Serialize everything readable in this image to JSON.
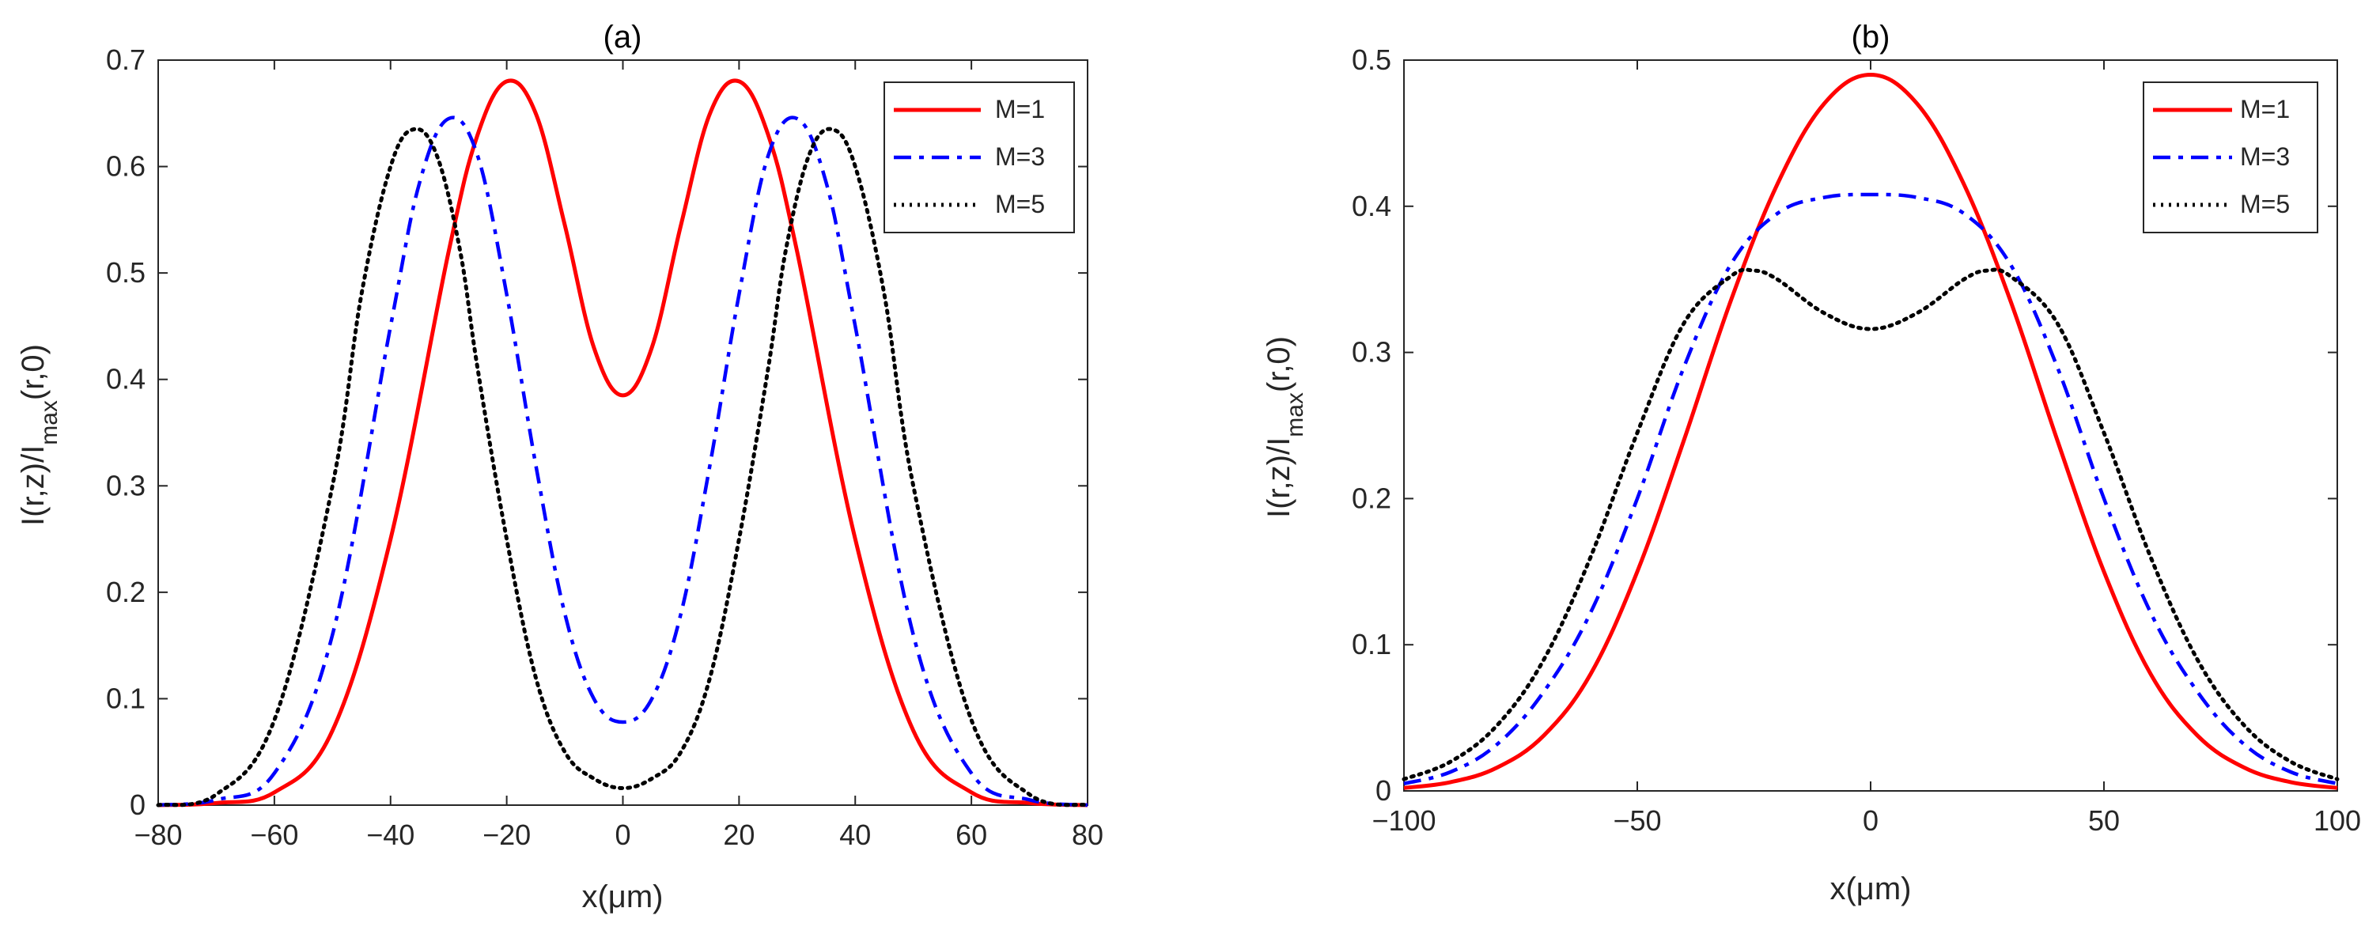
{
  "colors": {
    "m1": "#ff0000",
    "m3": "#0000ff",
    "m5": "#000000",
    "axis": "#262626"
  },
  "chart_data": [
    {
      "type": "line",
      "title": "(a)",
      "xlabel": "x(μm)",
      "ylabel": {
        "prefix": "I(r,z)/I",
        "sub": "max",
        "suffix": "(r,0)"
      },
      "xlim": [
        -80,
        80
      ],
      "ylim": [
        0,
        0.7
      ],
      "xticks": [
        -80,
        -60,
        -40,
        -20,
        0,
        20,
        40,
        60,
        80
      ],
      "xtick_labels": [
        "−80",
        "−60",
        "−40",
        "−20",
        "0",
        "20",
        "40",
        "60",
        "80"
      ],
      "yticks": [
        0,
        0.1,
        0.2,
        0.3,
        0.4,
        0.5,
        0.6,
        0.7
      ],
      "ytick_labels": [
        "0",
        "0.1",
        "0.2",
        "0.3",
        "0.4",
        "0.5",
        "0.6",
        "0.7"
      ],
      "legend": {
        "location": "top-right",
        "entries": [
          "M=1",
          "M=3",
          "M=5"
        ]
      },
      "series": [
        {
          "name": "M=1",
          "style": "solid",
          "color_key": "m1",
          "x": [
            -80,
            -70,
            -60,
            -50,
            -40,
            -30,
            -25,
            -20,
            -15,
            -10,
            -5,
            0,
            5,
            10,
            15,
            20,
            25,
            30,
            40,
            50,
            60,
            70,
            80
          ],
          "y": [
            0.0,
            0.002,
            0.012,
            0.07,
            0.25,
            0.52,
            0.63,
            0.68,
            0.65,
            0.545,
            0.43,
            0.385,
            0.43,
            0.545,
            0.65,
            0.68,
            0.63,
            0.52,
            0.25,
            0.07,
            0.012,
            0.002,
            0.0
          ]
        },
        {
          "name": "M=3",
          "style": "dashdot",
          "color_key": "m3",
          "x": [
            -80,
            -70,
            -60,
            -50,
            -40,
            -35,
            -30,
            -25,
            -20,
            -15,
            -10,
            -5,
            0,
            5,
            10,
            15,
            20,
            25,
            30,
            35,
            40,
            50,
            60,
            70,
            80
          ],
          "y": [
            0.0,
            0.005,
            0.03,
            0.16,
            0.45,
            0.585,
            0.645,
            0.61,
            0.48,
            0.32,
            0.18,
            0.1,
            0.078,
            0.1,
            0.18,
            0.32,
            0.48,
            0.61,
            0.645,
            0.585,
            0.45,
            0.16,
            0.03,
            0.005,
            0.0
          ]
        },
        {
          "name": "M=5",
          "style": "dotted",
          "color_key": "m5",
          "x": [
            -80,
            -70,
            -60,
            -50,
            -45,
            -40,
            -36,
            -32,
            -28,
            -25,
            -20,
            -15,
            -10,
            -5,
            0,
            5,
            10,
            15,
            20,
            25,
            28,
            32,
            36,
            40,
            45,
            50,
            60,
            70,
            80
          ],
          "y": [
            0.0,
            0.01,
            0.08,
            0.3,
            0.48,
            0.6,
            0.635,
            0.61,
            0.52,
            0.41,
            0.25,
            0.12,
            0.05,
            0.025,
            0.016,
            0.025,
            0.05,
            0.12,
            0.25,
            0.41,
            0.52,
            0.61,
            0.635,
            0.6,
            0.48,
            0.3,
            0.08,
            0.01,
            0.0
          ]
        }
      ]
    },
    {
      "type": "line",
      "title": "(b)",
      "xlabel": "x(μm)",
      "ylabel": {
        "prefix": "I(r,z)/I",
        "sub": "max",
        "suffix": "(r,0)"
      },
      "xlim": [
        -100,
        100
      ],
      "ylim": [
        0,
        0.5
      ],
      "xticks": [
        -100,
        -50,
        0,
        50,
        100
      ],
      "xtick_labels": [
        "−100",
        "−50",
        "0",
        "50",
        "100"
      ],
      "yticks": [
        0,
        0.1,
        0.2,
        0.3,
        0.4,
        0.5
      ],
      "ytick_labels": [
        "0",
        "0.1",
        "0.2",
        "0.3",
        "0.4",
        "0.5"
      ],
      "legend": {
        "location": "top-right",
        "entries": [
          "M=1",
          "M=3",
          "M=5"
        ]
      },
      "series": [
        {
          "name": "M=1",
          "style": "solid",
          "color_key": "m1",
          "x": [
            -100,
            -90,
            -80,
            -70,
            -60,
            -50,
            -40,
            -30,
            -20,
            -10,
            0,
            10,
            20,
            30,
            40,
            50,
            60,
            70,
            80,
            90,
            100
          ],
          "y": [
            0.002,
            0.006,
            0.016,
            0.038,
            0.08,
            0.15,
            0.24,
            0.335,
            0.415,
            0.47,
            0.49,
            0.47,
            0.415,
            0.335,
            0.24,
            0.15,
            0.08,
            0.038,
            0.016,
            0.006,
            0.002
          ]
        },
        {
          "name": "M=3",
          "style": "dashdot",
          "color_key": "m3",
          "x": [
            -100,
            -90,
            -80,
            -70,
            -60,
            -50,
            -40,
            -30,
            -20,
            -10,
            0,
            10,
            20,
            30,
            40,
            50,
            60,
            70,
            80,
            90,
            100
          ],
          "y": [
            0.005,
            0.013,
            0.032,
            0.068,
            0.122,
            0.2,
            0.29,
            0.36,
            0.395,
            0.406,
            0.408,
            0.406,
            0.395,
            0.36,
            0.29,
            0.2,
            0.122,
            0.068,
            0.032,
            0.013,
            0.005
          ]
        },
        {
          "name": "M=5",
          "style": "dotted",
          "color_key": "m5",
          "x": [
            -100,
            -90,
            -80,
            -70,
            -60,
            -50,
            -40,
            -30,
            -25,
            -20,
            -10,
            0,
            10,
            20,
            25,
            30,
            40,
            50,
            60,
            70,
            80,
            90,
            100
          ],
          "y": [
            0.008,
            0.02,
            0.045,
            0.09,
            0.16,
            0.245,
            0.32,
            0.352,
            0.356,
            0.35,
            0.327,
            0.316,
            0.327,
            0.35,
            0.356,
            0.352,
            0.32,
            0.245,
            0.16,
            0.09,
            0.045,
            0.02,
            0.008
          ]
        }
      ]
    }
  ]
}
